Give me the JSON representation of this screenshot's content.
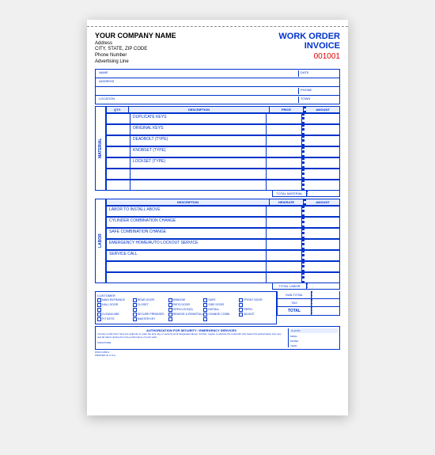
{
  "header": {
    "company_name": "YOUR COMPANY NAME",
    "address": "Address",
    "city_state_zip": "CITY, STATE, ZIP CODE",
    "phone": "Phone Number",
    "ad_line": "Advertising Line",
    "wo_title_1": "WORK ORDER",
    "wo_title_2": "INVOICE",
    "order_no": "001001"
  },
  "fields": {
    "name": "NAME",
    "date": "DATE",
    "address": "ADDRESS",
    "phone": "PHONE",
    "location": "LOCATION",
    "town": "TOWN"
  },
  "material": {
    "tab": "MATERIAL",
    "cols": {
      "qty": "QTY.",
      "desc": "DESCRIPTION",
      "price": "PRICE",
      "amt": "AMOUNT"
    },
    "rows": [
      "DUPLICATE KEYS",
      "ORIGINAL KEYS",
      "DEADBOLT (TYPE)",
      "KNOBSET (TYPE)",
      "LOCKSET (TYPE)",
      "",
      ""
    ],
    "total": "TOTAL MATERIAL"
  },
  "labor": {
    "tab": "LABOR",
    "cols": {
      "desc": "DESCRIPTION",
      "rate": "HRS/RATE",
      "amt": "AMOUNT"
    },
    "rows": [
      "LABOR TO INSTALL ABOVE",
      "CYLINDER COMBINATION CHANGE",
      "SAFE COMBINATION CHANGE",
      "EMERGENCY HOME/AUTO LOCKOUT SERVICE",
      "SERVICE CALL",
      "",
      ""
    ],
    "total": "TOTAL LABOR"
  },
  "checks": {
    "hdr": "CUSTOMER",
    "items": [
      "MAIN ENTRANCE",
      "REAR DOOR",
      "WINDOW",
      "SAFE",
      "FRONT DOOR",
      "HALL DOOR",
      "CLOSET",
      "PATIO DOOR",
      "SIDE DOOR",
      "",
      "",
      "",
      "OPEN LOCK(S)",
      "INSTALL",
      "REPIN",
      "CLEAN/LUBE",
      "SECURE PREMISES",
      "REMOVE & REINSTALL",
      "CHANGE COMB.",
      "ADJUST",
      "FIT KEYS",
      "MASTER KEY",
      "",
      ""
    ]
  },
  "totals": {
    "sub": "SUB-TOTAL",
    "tax": "TAX",
    "total": "TOTAL"
  },
  "auth": {
    "hdr": "AUTHORIZATION FOR SECURITY / EMERGENCY SERVICES",
    "text": "I hereby certify that I have the authority to order the lock, key or security work designated above. Further, I agree to absolve the locksmith who bears this authorization from any and all claims arising from the performance of such work.",
    "sig": "SIGNATURE",
    "if_auto": "IF AUTO",
    "make": "MAKE",
    "model": "MODEL",
    "year": "YEAR"
  },
  "foot": {
    "code": "WOCC-680-3",
    "print": "PRINTED IN U.S.A."
  }
}
